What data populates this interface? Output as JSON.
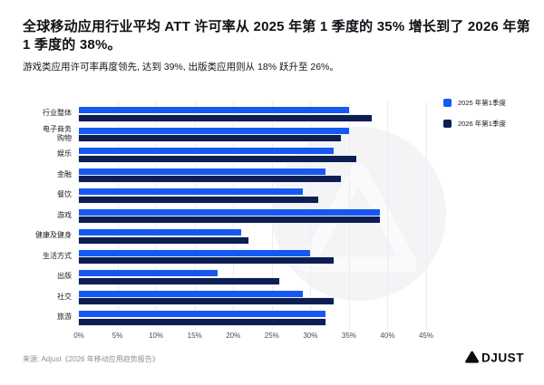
{
  "header": {
    "title": "全球移动应用行业平均 ATT 许可率从 2025 年第 1 季度的 35% 增长到了 2026 年第 1 季度的 38%。",
    "subtitle": "游戏类应用许可率再度领先, 达到 39%, 出版类应用则从 18% 跃升至 26%。"
  },
  "chart_data": {
    "type": "bar",
    "orientation": "horizontal",
    "title": "全球移动应用行业平均 ATT 许可率从 2025 年第 1 季度的 35% 增长到了 2026 年第 1 季度的 38%。",
    "categories": [
      "行业整体",
      "电子商务\n购物",
      "娱乐",
      "金融",
      "餐饮",
      "游戏",
      "健康及健身",
      "生活方式",
      "出版",
      "社交",
      "旅游"
    ],
    "series": [
      {
        "name": "2025 年第1季度",
        "color": "#1659f2",
        "values": [
          35,
          35,
          33,
          32,
          29,
          39,
          21,
          30,
          18,
          29,
          32
        ]
      },
      {
        "name": "2026 年第1季度",
        "color": "#0c1e52",
        "values": [
          38,
          34,
          36,
          34,
          31,
          39,
          22,
          33,
          26,
          33,
          32
        ]
      }
    ],
    "xticks": [
      "0%",
      "5%",
      "10%",
      "15%",
      "20%",
      "25%",
      "30%",
      "35%",
      "40%",
      "45%"
    ],
    "xlim": [
      0,
      45
    ],
    "xlabel": "",
    "ylabel": "",
    "grid": true,
    "legend_position": "top-right"
  },
  "footer": {
    "source": "来源: Adjust《2026 年移动应用趋势报告》",
    "logo_text": "ADJUST"
  },
  "colors": {
    "bar_2025": "#1659f2",
    "bar_2026": "#0c1e52",
    "gridline": "#ececf1",
    "watermark": "#f4f4f7",
    "text": "#101116",
    "source_text": "#8e9095"
  }
}
